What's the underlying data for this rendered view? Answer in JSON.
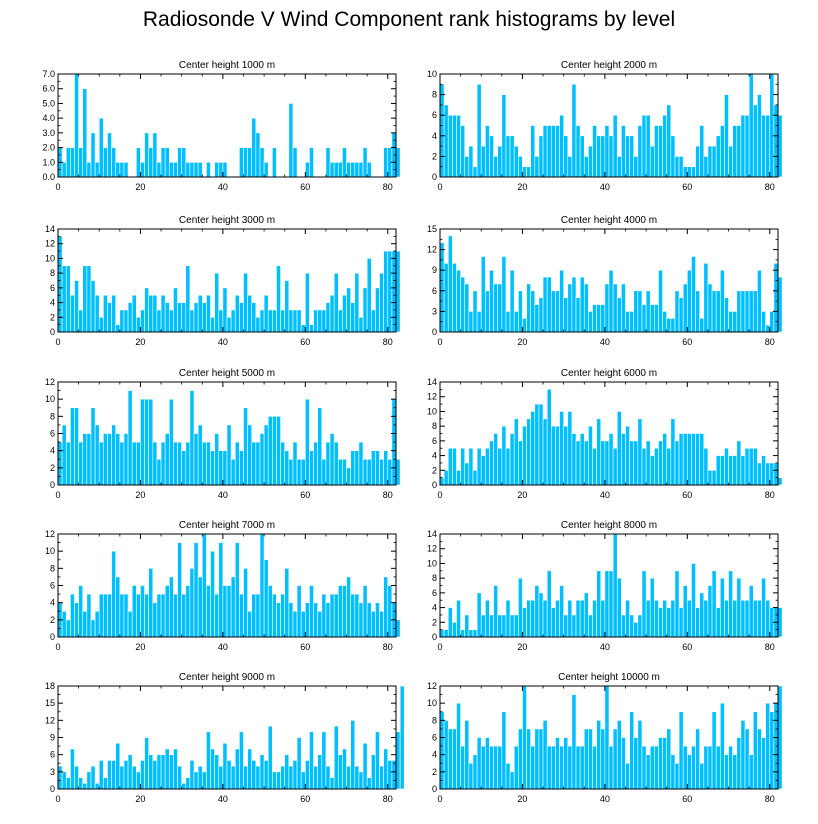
{
  "title": "Radiosonde V Wind Component rank histograms by level",
  "colors": {
    "bar": "#00BFFF",
    "bar_edge": "#ffffff",
    "axis": "#000000"
  },
  "chart_data": [
    {
      "type": "bar",
      "title": "Center height 1000 m",
      "xlim": [
        0,
        82
      ],
      "ylim": [
        0,
        7
      ],
      "xticks": [
        0,
        20,
        40,
        60,
        80
      ],
      "yticks": [
        0,
        1,
        2,
        3,
        4,
        5,
        6,
        7
      ],
      "ytick_labels": [
        "0.0",
        "1.0",
        "2.0",
        "3.0",
        "4.0",
        "5.0",
        "6.0",
        "7.0"
      ],
      "values": [
        2,
        1,
        2,
        2,
        7,
        2,
        6,
        1,
        3,
        1,
        4,
        2,
        3,
        2,
        1,
        1,
        1,
        0,
        0,
        2,
        1,
        3,
        2,
        3,
        1,
        2,
        2,
        1,
        1,
        2,
        2,
        1,
        1,
        1,
        1,
        0,
        1,
        0,
        1,
        1,
        1,
        0,
        0,
        0,
        2,
        2,
        2,
        4,
        3,
        2,
        1,
        0,
        2,
        0,
        0,
        0,
        5,
        2,
        0,
        0,
        1,
        2,
        0,
        0,
        0,
        2,
        1,
        1,
        1,
        2,
        1,
        1,
        1,
        1,
        2,
        1,
        0,
        0,
        0,
        2,
        2,
        3,
        2
      ],
      "xlabel": "",
      "ylabel": ""
    },
    {
      "type": "bar",
      "title": "Center height 2000 m",
      "xlim": [
        0,
        82
      ],
      "ylim": [
        0,
        10
      ],
      "xticks": [
        0,
        20,
        40,
        60,
        80
      ],
      "yticks": [
        0,
        2,
        4,
        6,
        8,
        10
      ],
      "ytick_labels": [
        "0",
        "2",
        "4",
        "6",
        "8",
        "10"
      ],
      "values": [
        9,
        7,
        6,
        6,
        6,
        5,
        2,
        3,
        1,
        9,
        3,
        5,
        4,
        2,
        3,
        8,
        4,
        4,
        3,
        2,
        1,
        1,
        5,
        2,
        4,
        5,
        5,
        5,
        5,
        6,
        4,
        2,
        9,
        5,
        4,
        2,
        3,
        5,
        4,
        4,
        5,
        4,
        6,
        2,
        5,
        4,
        4,
        2,
        5,
        6,
        6,
        3,
        5,
        5,
        6,
        7,
        4,
        2,
        2,
        1,
        1,
        1,
        3,
        5,
        2,
        3,
        3,
        4,
        5,
        8,
        3,
        5,
        5,
        6,
        6,
        10,
        7,
        8,
        6,
        6,
        10,
        7,
        6
      ],
      "xlabel": "",
      "ylabel": ""
    },
    {
      "type": "bar",
      "title": "Center height 3000 m",
      "xlim": [
        0,
        82
      ],
      "ylim": [
        0,
        14
      ],
      "xticks": [
        0,
        20,
        40,
        60,
        80
      ],
      "yticks": [
        0,
        2,
        4,
        6,
        8,
        10,
        12,
        14
      ],
      "ytick_labels": [
        "0",
        "2",
        "4",
        "6",
        "8",
        "10",
        "12",
        "14"
      ],
      "values": [
        13,
        9,
        9,
        5,
        7,
        3,
        9,
        9,
        7,
        5,
        2,
        5,
        4,
        5,
        1,
        3,
        3,
        4,
        5,
        2,
        3,
        6,
        5,
        5,
        3,
        5,
        4,
        3,
        6,
        4,
        4,
        9,
        3,
        4,
        5,
        4,
        5,
        2,
        8,
        3,
        6,
        2,
        3,
        5,
        4,
        8,
        5,
        4,
        2,
        3,
        5,
        3,
        3,
        9,
        3,
        7,
        3,
        3,
        3,
        1,
        8,
        1,
        3,
        3,
        3,
        4,
        5,
        8,
        3,
        5,
        6,
        4,
        8,
        2,
        6,
        10,
        3,
        6,
        8,
        11,
        11,
        11,
        11
      ],
      "xlabel": "",
      "ylabel": ""
    },
    {
      "type": "bar",
      "title": "Center height 4000 m",
      "xlim": [
        0,
        82
      ],
      "ylim": [
        0,
        15
      ],
      "xticks": [
        0,
        20,
        40,
        60,
        80
      ],
      "yticks": [
        0,
        3,
        6,
        9,
        12,
        15
      ],
      "ytick_labels": [
        "0",
        "3",
        "6",
        "9",
        "12",
        "15"
      ],
      "values": [
        13,
        10,
        14,
        10,
        9,
        8,
        7,
        3,
        6,
        3,
        11,
        6,
        9,
        7,
        7,
        11,
        3,
        9,
        3,
        6,
        2,
        7,
        6,
        4,
        5,
        8,
        8,
        6,
        6,
        9,
        5,
        7,
        8,
        5,
        8,
        7,
        3,
        4,
        4,
        4,
        7,
        9,
        7,
        5,
        7,
        3,
        3,
        6,
        6,
        4,
        6,
        4,
        4,
        9,
        3,
        2,
        2,
        6,
        5,
        7,
        9,
        11,
        6,
        2,
        10,
        7,
        6,
        6,
        9,
        5,
        3,
        3,
        6,
        6,
        6,
        6,
        6,
        9,
        3,
        1,
        3,
        10,
        8
      ],
      "xlabel": "",
      "ylabel": ""
    },
    {
      "type": "bar",
      "title": "Center height 5000 m",
      "xlim": [
        0,
        82
      ],
      "ylim": [
        0,
        12
      ],
      "xticks": [
        0,
        20,
        40,
        60,
        80
      ],
      "yticks": [
        0,
        2,
        4,
        6,
        8,
        10,
        12
      ],
      "ytick_labels": [
        "0",
        "2",
        "4",
        "6",
        "8",
        "10",
        "12"
      ],
      "values": [
        5,
        7,
        5,
        9,
        9,
        5,
        6,
        6,
        9,
        7,
        5,
        6,
        6,
        7,
        6,
        5,
        6,
        11,
        5,
        5,
        10,
        10,
        10,
        5,
        3,
        5,
        6,
        10,
        5,
        5,
        4,
        5,
        11,
        6,
        7,
        5,
        5,
        4,
        6,
        4,
        4,
        7,
        3,
        5,
        4,
        9,
        7,
        5,
        5,
        6,
        7,
        8,
        8,
        8,
        5,
        4,
        3,
        5,
        3,
        3,
        10,
        4,
        5,
        9,
        3,
        5,
        6,
        5,
        3,
        3,
        2,
        4,
        4,
        5,
        3,
        3,
        4,
        4,
        3,
        4,
        3,
        10,
        3
      ],
      "xlabel": "",
      "ylabel": ""
    },
    {
      "type": "bar",
      "title": "Center height 6000 m",
      "xlim": [
        0,
        82
      ],
      "ylim": [
        0,
        14
      ],
      "xticks": [
        0,
        20,
        40,
        60,
        80
      ],
      "yticks": [
        0,
        2,
        4,
        6,
        8,
        10,
        12,
        14
      ],
      "ytick_labels": [
        "0",
        "2",
        "4",
        "6",
        "8",
        "10",
        "12",
        "14"
      ],
      "values": [
        1,
        2,
        5,
        5,
        2,
        5,
        3,
        5,
        2,
        5,
        4,
        5,
        6,
        7,
        5,
        8,
        5,
        7,
        9,
        6,
        8,
        9,
        10,
        11,
        11,
        9,
        13,
        8,
        8,
        10,
        8,
        10,
        7,
        6,
        7,
        6,
        8,
        5,
        9,
        6,
        6,
        7,
        5,
        10,
        7,
        8,
        6,
        6,
        9,
        5,
        6,
        4,
        5,
        6,
        7,
        5,
        9,
        6,
        7,
        7,
        7,
        7,
        7,
        7,
        5,
        2,
        2,
        4,
        4,
        5,
        4,
        4,
        6,
        4,
        5,
        5,
        5,
        3,
        4,
        3,
        3,
        3,
        1
      ],
      "xlabel": "",
      "ylabel": ""
    },
    {
      "type": "bar",
      "title": "Center height 7000 m",
      "xlim": [
        0,
        82
      ],
      "ylim": [
        0,
        12
      ],
      "xticks": [
        0,
        20,
        40,
        60,
        80
      ],
      "yticks": [
        0,
        2,
        4,
        6,
        8,
        10,
        12
      ],
      "ytick_labels": [
        "0",
        "2",
        "4",
        "6",
        "8",
        "10",
        "12"
      ],
      "values": [
        4,
        3,
        2,
        5,
        4,
        6,
        3,
        5,
        2,
        3,
        5,
        5,
        5,
        10,
        7,
        5,
        5,
        3,
        6,
        5,
        6,
        5,
        8,
        4,
        5,
        5,
        6,
        7,
        5,
        11,
        5,
        6,
        8,
        11,
        7,
        12,
        6,
        10,
        5,
        11,
        6,
        6,
        7,
        11,
        5,
        8,
        3,
        5,
        5,
        12,
        9,
        6,
        5,
        4,
        5,
        8,
        4,
        3,
        6,
        3,
        4,
        6,
        4,
        3,
        5,
        4,
        5,
        5,
        6,
        6,
        7,
        5,
        5,
        4,
        6,
        4,
        3,
        4,
        3,
        7,
        6,
        4,
        2
      ],
      "xlabel": "",
      "ylabel": ""
    },
    {
      "type": "bar",
      "title": "Center height 8000 m",
      "xlim": [
        0,
        82
      ],
      "ylim": [
        0,
        14
      ],
      "xticks": [
        0,
        20,
        40,
        60,
        80
      ],
      "yticks": [
        0,
        2,
        4,
        6,
        8,
        10,
        12,
        14
      ],
      "ytick_labels": [
        "0",
        "2",
        "4",
        "6",
        "8",
        "10",
        "12",
        "14"
      ],
      "values": [
        1,
        1,
        4,
        2,
        5,
        1,
        3,
        1,
        1,
        6,
        3,
        5,
        3,
        7,
        3,
        3,
        5,
        3,
        3,
        8,
        4,
        5,
        5,
        7,
        6,
        5,
        9,
        4,
        5,
        7,
        3,
        5,
        3,
        5,
        5,
        6,
        3,
        5,
        9,
        5,
        9,
        9,
        14,
        8,
        3,
        5,
        3,
        2,
        3,
        9,
        5,
        8,
        5,
        4,
        5,
        4,
        5,
        9,
        4,
        7,
        5,
        10,
        4,
        6,
        5,
        7,
        9,
        4,
        8,
        5,
        9,
        5,
        8,
        5,
        5,
        7,
        5,
        5,
        8,
        5,
        4,
        4,
        4
      ],
      "xlabel": "",
      "ylabel": ""
    },
    {
      "type": "bar",
      "title": "Center height 9000 m",
      "xlim": [
        0,
        82
      ],
      "ylim": [
        0,
        18
      ],
      "xticks": [
        0,
        20,
        40,
        60,
        80
      ],
      "yticks": [
        0,
        3,
        6,
        9,
        12,
        15,
        18
      ],
      "ytick_labels": [
        "0",
        "3",
        "6",
        "9",
        "12",
        "15",
        "18"
      ],
      "values": [
        4,
        3,
        2,
        7,
        4,
        2,
        1,
        3,
        4,
        1,
        5,
        2,
        5,
        5,
        8,
        4,
        5,
        6,
        4,
        3,
        5,
        9,
        6,
        5,
        6,
        6,
        7,
        6,
        7,
        4,
        1,
        2,
        5,
        3,
        4,
        3,
        10,
        7,
        6,
        4,
        8,
        5,
        4,
        7,
        10,
        4,
        7,
        5,
        4,
        6,
        5,
        11,
        3,
        3,
        4,
        6,
        4,
        5,
        9,
        3,
        5,
        10,
        4,
        6,
        10,
        4,
        2,
        11,
        6,
        7,
        4,
        12,
        4,
        3,
        8,
        2,
        6,
        10,
        4,
        7,
        5,
        5,
        10,
        18
      ],
      "xlabel": "",
      "ylabel": ""
    },
    {
      "type": "bar",
      "title": "Center height 10000 m",
      "xlim": [
        0,
        82
      ],
      "ylim": [
        0,
        12
      ],
      "xticks": [
        0,
        20,
        40,
        60,
        80
      ],
      "yticks": [
        0,
        2,
        4,
        6,
        8,
        10,
        12
      ],
      "ytick_labels": [
        "0",
        "2",
        "4",
        "6",
        "8",
        "10",
        "12"
      ],
      "values": [
        9,
        8,
        7,
        7,
        10,
        5,
        8,
        3,
        4,
        6,
        5,
        6,
        5,
        5,
        5,
        9,
        3,
        2,
        5,
        7,
        12,
        7,
        5,
        7,
        7,
        8,
        5,
        5,
        6,
        5,
        6,
        5,
        11,
        5,
        5,
        7,
        7,
        5,
        8,
        7,
        12,
        5,
        7,
        8,
        6,
        3,
        9,
        6,
        8,
        5,
        4,
        5,
        5,
        6,
        6,
        7,
        4,
        3,
        9,
        5,
        4,
        5,
        7,
        3,
        5,
        5,
        9,
        5,
        10,
        4,
        5,
        4,
        6,
        8,
        7,
        4,
        9,
        7,
        6,
        10,
        9,
        10,
        12
      ],
      "xlabel": "",
      "ylabel": ""
    }
  ]
}
